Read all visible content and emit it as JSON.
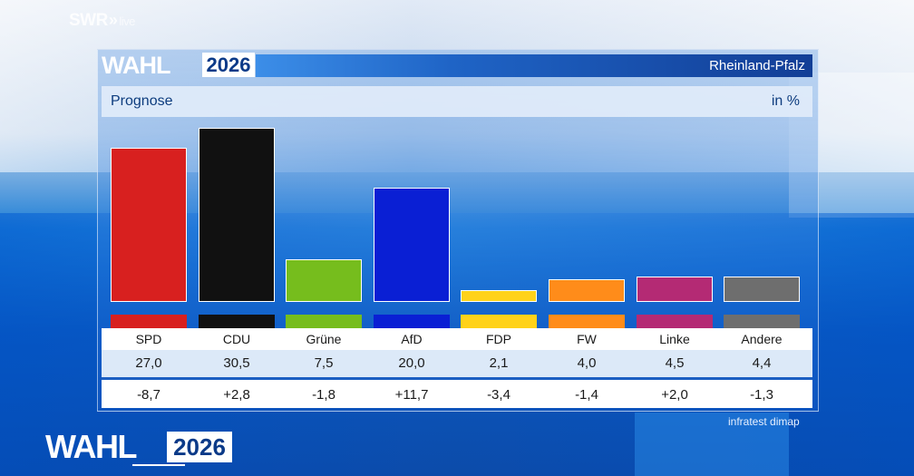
{
  "broadcaster": {
    "name": "SWR",
    "suffix": "live"
  },
  "header": {
    "logo_word": "WAHL",
    "logo_year": "2026",
    "region": "Rheinland-Pfalz"
  },
  "subheader": {
    "title": "Prognose",
    "unit": "in %"
  },
  "chart_data": {
    "type": "bar",
    "title": "Prognose",
    "unit": "in %",
    "categories": [
      "SPD",
      "CDU",
      "Grüne",
      "AfD",
      "FDP",
      "FW",
      "Linke",
      "Andere"
    ],
    "values": [
      27.0,
      30.5,
      7.5,
      20.0,
      2.1,
      4.0,
      4.5,
      4.4
    ],
    "value_labels": [
      "27,0",
      "30,5",
      "7,5",
      "20,0",
      "2,1",
      "4,0",
      "4,5",
      "4,4"
    ],
    "change_labels": [
      "-8,7",
      "+2,8",
      "-1,8",
      "+11,7",
      "-3,4",
      "-1,4",
      "+2,0",
      "-1,3"
    ],
    "colors": [
      "#d8201f",
      "#111111",
      "#76bd1d",
      "#0a1fd4",
      "#ffd21a",
      "#ff8c1a",
      "#b42a74",
      "#6e6e6e"
    ],
    "ylim": [
      0,
      30.5
    ],
    "grid": false,
    "legend": "none"
  },
  "source": "infratest dimap",
  "footer_logo": {
    "word": "WAHL",
    "year": "2026"
  }
}
